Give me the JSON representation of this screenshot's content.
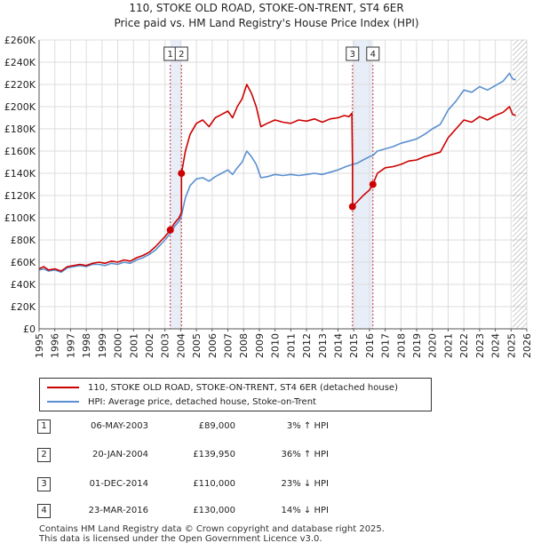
{
  "chart_data": {
    "type": "line",
    "title": "110, STOKE OLD ROAD, STOKE-ON-TRENT, ST4 6ER",
    "subtitle": "Price paid vs. HM Land Registry's House Price Index (HPI)",
    "xlabel": "",
    "ylabel": "",
    "xlim": [
      1995,
      2026
    ],
    "ylim": [
      0,
      260000
    ],
    "x_ticks": [
      "1995",
      "1996",
      "1997",
      "1998",
      "1999",
      "2000",
      "2001",
      "2002",
      "2003",
      "2004",
      "2005",
      "2006",
      "2007",
      "2008",
      "2009",
      "2010",
      "2011",
      "2012",
      "2013",
      "2014",
      "2015",
      "2016",
      "2017",
      "2018",
      "2019",
      "2020",
      "2021",
      "2022",
      "2023",
      "2024",
      "2025",
      "2026"
    ],
    "y_ticks": [
      "£0",
      "£20K",
      "£40K",
      "£60K",
      "£80K",
      "£100K",
      "£120K",
      "£140K",
      "£160K",
      "£180K",
      "£200K",
      "£220K",
      "£240K",
      "£260K"
    ],
    "grid": true,
    "colors": {
      "price": "#cc0000",
      "hpi": "#5b8fd0",
      "shade": "#e8eef8",
      "marker_line": "#cc3333"
    },
    "series": [
      {
        "name": "110, STOKE OLD ROAD, STOKE-ON-TRENT, ST4 6ER (detached house)",
        "color": "#cc0000",
        "x": [
          1995.0,
          1995.3,
          1995.6,
          1996.0,
          1996.4,
          1996.8,
          1997.2,
          1997.6,
          1998.0,
          1998.4,
          1998.8,
          1999.2,
          1999.6,
          2000.0,
          2000.4,
          2000.8,
          2001.2,
          2001.6,
          2002.0,
          2002.4,
          2002.8,
          2003.0,
          2003.34,
          2003.6,
          2003.9,
          2004.05,
          2004.05,
          2004.3,
          2004.6,
          2005.0,
          2005.4,
          2005.8,
          2006.2,
          2006.6,
          2007.0,
          2007.3,
          2007.6,
          2007.9,
          2008.2,
          2008.5,
          2008.8,
          2009.1,
          2009.5,
          2010.0,
          2010.5,
          2011.0,
          2011.5,
          2012.0,
          2012.5,
          2013.0,
          2013.5,
          2014.0,
          2014.4,
          2014.7,
          2014.88,
          2014.92,
          2014.92,
          2015.2,
          2015.6,
          2016.0,
          2016.22,
          2016.5,
          2017.0,
          2017.5,
          2018.0,
          2018.5,
          2019.0,
          2019.5,
          2020.0,
          2020.5,
          2021.0,
          2021.5,
          2022.0,
          2022.5,
          2023.0,
          2023.5,
          2024.0,
          2024.5,
          2024.9,
          2025.1,
          2025.3
        ],
        "values": [
          54000,
          56000,
          53000,
          54000,
          52000,
          56000,
          57000,
          58000,
          57000,
          59000,
          60000,
          59000,
          61000,
          60000,
          62000,
          61000,
          64000,
          66000,
          69000,
          74000,
          80000,
          83000,
          89000,
          95000,
          100000,
          105000,
          139950,
          160000,
          175000,
          185000,
          188000,
          182000,
          190000,
          193000,
          196000,
          190000,
          200000,
          207000,
          220000,
          212000,
          200000,
          182000,
          185000,
          188000,
          186000,
          185000,
          188000,
          187000,
          189000,
          186000,
          189000,
          190000,
          192000,
          191000,
          194000,
          150000,
          110000,
          114000,
          120000,
          125000,
          130000,
          140000,
          145000,
          146000,
          148000,
          151000,
          152000,
          155000,
          157000,
          159000,
          172000,
          180000,
          188000,
          186000,
          191000,
          188000,
          192000,
          195000,
          200000,
          193000,
          192000
        ]
      },
      {
        "name": "HPI: Average price, detached house, Stoke-on-Trent",
        "color": "#5b8fd0",
        "x": [
          1995.0,
          1995.3,
          1995.6,
          1996.0,
          1996.4,
          1996.8,
          1997.2,
          1997.6,
          1998.0,
          1998.4,
          1998.8,
          1999.2,
          1999.6,
          2000.0,
          2000.4,
          2000.8,
          2001.2,
          2001.6,
          2002.0,
          2002.4,
          2002.8,
          2003.0,
          2003.34,
          2003.6,
          2003.9,
          2004.05,
          2004.3,
          2004.6,
          2005.0,
          2005.4,
          2005.8,
          2006.2,
          2006.6,
          2007.0,
          2007.3,
          2007.6,
          2007.9,
          2008.2,
          2008.5,
          2008.8,
          2009.1,
          2009.5,
          2010.0,
          2010.5,
          2011.0,
          2011.5,
          2012.0,
          2012.5,
          2013.0,
          2013.5,
          2014.0,
          2014.5,
          2014.92,
          2015.2,
          2015.6,
          2016.0,
          2016.22,
          2016.5,
          2017.0,
          2017.5,
          2018.0,
          2018.5,
          2019.0,
          2019.5,
          2020.0,
          2020.5,
          2021.0,
          2021.5,
          2022.0,
          2022.5,
          2023.0,
          2023.5,
          2024.0,
          2024.5,
          2024.9,
          2025.1,
          2025.3
        ],
        "values": [
          53000,
          54000,
          52000,
          53000,
          51000,
          55000,
          56000,
          57000,
          56000,
          58000,
          58000,
          57000,
          59000,
          58000,
          60000,
          59000,
          62000,
          64000,
          67000,
          71000,
          77000,
          80000,
          86000,
          92000,
          97000,
          102000,
          118000,
          129000,
          135000,
          136000,
          133000,
          137000,
          140000,
          143000,
          139000,
          145000,
          150000,
          160000,
          155000,
          148000,
          136000,
          137000,
          139000,
          138000,
          139000,
          138000,
          139000,
          140000,
          139000,
          141000,
          143000,
          146000,
          148000,
          149000,
          152000,
          155000,
          156000,
          160000,
          162000,
          164000,
          167000,
          169000,
          171000,
          175000,
          180000,
          184000,
          197000,
          205000,
          215000,
          213000,
          218000,
          215000,
          219000,
          223000,
          230000,
          225000,
          224000
        ]
      }
    ],
    "annotations": [
      {
        "label": "1",
        "x": 2003.34,
        "value": 89000
      },
      {
        "label": "2",
        "x": 2004.05,
        "value": 139950
      },
      {
        "label": "3",
        "x": 2014.92,
        "value": 110000
      },
      {
        "label": "4",
        "x": 2016.22,
        "value": 130000
      }
    ],
    "shaded_ranges": [
      [
        2003.34,
        2004.05
      ],
      [
        2014.92,
        2016.22
      ]
    ],
    "hatched_from": 2025.1
  },
  "legend": {
    "price_label": "110, STOKE OLD ROAD, STOKE-ON-TRENT, ST4 6ER (detached house)",
    "hpi_label": "HPI: Average price, detached house, Stoke-on-Trent"
  },
  "sales": [
    {
      "num": "1",
      "date": "06-MAY-2003",
      "price": "£89,000",
      "hpi": "3% ↑ HPI"
    },
    {
      "num": "2",
      "date": "20-JAN-2004",
      "price": "£139,950",
      "hpi": "36% ↑ HPI"
    },
    {
      "num": "3",
      "date": "01-DEC-2014",
      "price": "£110,000",
      "hpi": "23% ↓ HPI"
    },
    {
      "num": "4",
      "date": "23-MAR-2016",
      "price": "£130,000",
      "hpi": "14% ↓ HPI"
    }
  ],
  "footer": {
    "line1": "Contains HM Land Registry data © Crown copyright and database right 2025.",
    "line2": "This data is licensed under the Open Government Licence v3.0."
  }
}
